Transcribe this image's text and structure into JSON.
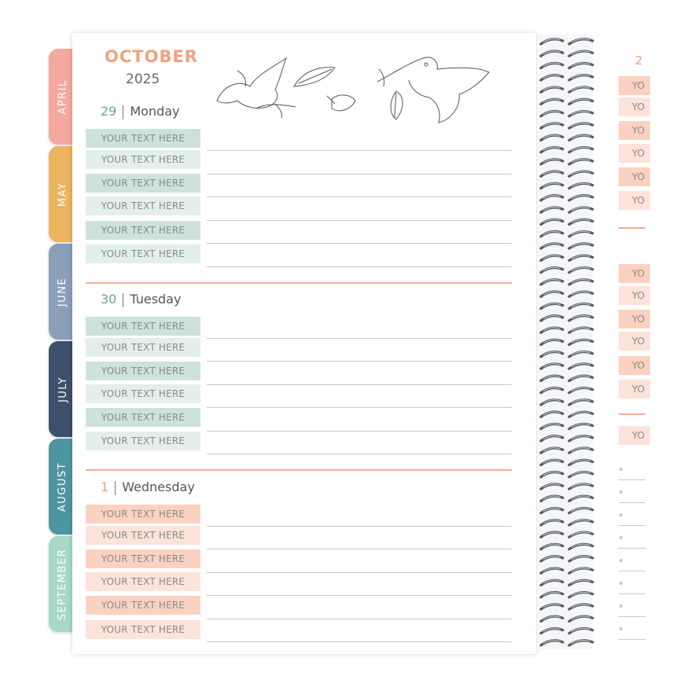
{
  "tabs": [
    {
      "label": "APRIL",
      "color": "#f5a8a0"
    },
    {
      "label": "MAY",
      "color": "#ebb560"
    },
    {
      "label": "JUNE",
      "color": "#8a9fb8"
    },
    {
      "label": "JULY",
      "color": "#3d506b"
    },
    {
      "label": "AUGUST",
      "color": "#4f95a0"
    },
    {
      "label": "SEPTEMBER",
      "color": "#a7d8c8"
    }
  ],
  "header": {
    "month": "OCTOBER",
    "year": "2025"
  },
  "days": [
    {
      "num": "29",
      "name": "Monday",
      "labels": [
        "YOUR TEXT HERE",
        "YOUR TEXT HERE",
        "YOUR TEXT HERE",
        "YOUR TEXT HERE",
        "YOUR TEXT HERE",
        "YOUR TEXT HERE"
      ]
    },
    {
      "num": "30",
      "name": "Tuesday",
      "labels": [
        "YOUR TEXT HERE",
        "YOUR TEXT HERE",
        "YOUR TEXT HERE",
        "YOUR TEXT HERE",
        "YOUR TEXT HERE",
        "YOUR TEXT HERE"
      ]
    },
    {
      "num": "1",
      "name": "Wednesday",
      "labels": [
        "YOUR TEXT HERE",
        "YOUR TEXT HERE",
        "YOUR TEXT HERE",
        "YOUR TEXT HERE",
        "YOUR TEXT HERE",
        "YOUR TEXT HERE"
      ]
    }
  ],
  "right_page": {
    "num": "2",
    "labels": [
      "YO",
      "YO",
      "YO",
      "YO",
      "YO",
      "YO",
      "YO",
      "YO",
      "YO",
      "YO",
      "YO",
      "YO",
      "YO"
    ]
  },
  "colors": {
    "mint": "#cde3da",
    "peach": "#fbd2c1",
    "accent": "#f0a181"
  }
}
